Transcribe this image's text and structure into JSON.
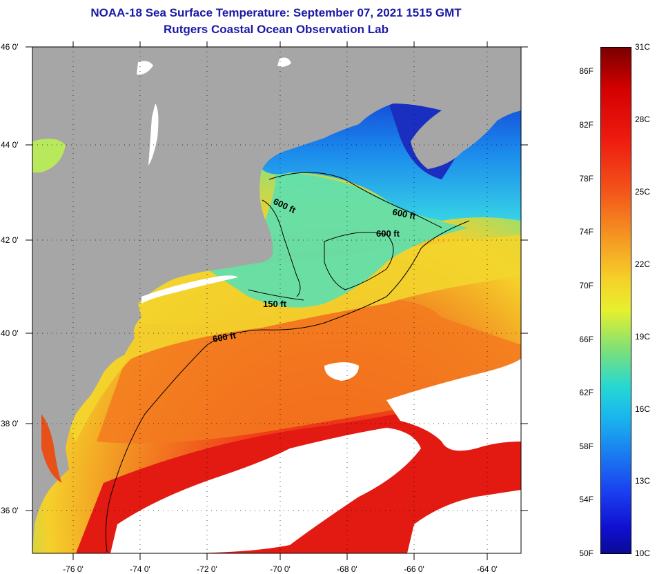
{
  "title": "NOAA-18 Sea Surface Temperature:  September 07, 2021 1515 GMT",
  "subtitle": "Rutgers Coastal Ocean Observation Lab",
  "lat_labels": [
    "46 0'",
    "44 0'",
    "42 0'",
    "40 0'",
    "38 0'",
    "36 0'"
  ],
  "lon_labels": [
    "-76 0'",
    "-74 0'",
    "-72 0'",
    "-70 0'",
    "-68 0'",
    "-66 0'",
    "-64 0'"
  ],
  "contours": {
    "c600_gom_w": "600 ft",
    "c600_gom_e": "600 ft",
    "c600_georges": "600 ft",
    "c150": "150 ft",
    "c600_shelf": "600 ft"
  },
  "colorbar": {
    "fahrenheit": [
      "86F",
      "82F",
      "78F",
      "74F",
      "70F",
      "66F",
      "62F",
      "58F",
      "54F",
      "50F"
    ],
    "celsius": [
      "31C",
      "28C",
      "25C",
      "22C",
      "19C",
      "16C",
      "13C",
      "10C"
    ]
  },
  "colors": {
    "title": "#1a1aa6",
    "land": "#a6a6a6",
    "cloud": "#ffffff"
  }
}
